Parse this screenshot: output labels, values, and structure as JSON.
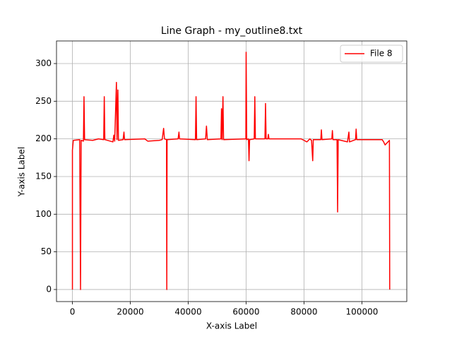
{
  "chart_data": {
    "type": "line",
    "title": "Line Graph - my_outline8.txt",
    "x_label": "X-axis Label",
    "y_label": "Y-axis Label",
    "x": [
      0,
      0,
      300,
      2500,
      2800,
      3000,
      3800,
      4000,
      4200,
      7000,
      9000,
      10800,
      11000,
      11200,
      14000,
      14300,
      14600,
      15200,
      15400,
      15700,
      15900,
      17500,
      17800,
      18000,
      25000,
      26000,
      30000,
      31000,
      31500,
      31800,
      32500,
      32600,
      32700,
      36500,
      36800,
      37000,
      42500,
      42700,
      42900,
      46000,
      46300,
      46600,
      51300,
      51500,
      51700,
      52000,
      52200,
      59900,
      60000,
      60200,
      60800,
      61000,
      61200,
      62800,
      63000,
      63200,
      66500,
      66700,
      66900,
      67500,
      67700,
      67900,
      79000,
      80000,
      81000,
      82000,
      82600,
      83000,
      83200,
      85800,
      86000,
      86200,
      89600,
      89800,
      90000,
      91400,
      91600,
      91800,
      95000,
      95500,
      95700,
      97800,
      98000,
      98200,
      107000,
      107500,
      108000,
      109500,
      109600
    ],
    "series": [
      {
        "name": "File 8",
        "color": "#ff0000",
        "values": [
          0,
          185,
          198,
          199,
          0,
          198,
          197,
          256,
          199,
          198,
          200,
          199,
          256,
          199,
          196,
          205,
          197,
          275,
          199,
          265,
          198,
          199,
          209,
          199,
          200,
          197,
          198,
          199,
          214,
          200,
          199,
          0,
          199,
          200,
          209,
          200,
          199,
          256,
          199,
          200,
          217,
          199,
          200,
          240,
          199,
          256,
          199,
          200,
          315,
          199,
          200,
          171,
          199,
          200,
          256,
          200,
          200,
          247,
          200,
          200,
          206,
          200,
          200,
          198,
          196,
          200,
          198,
          171,
          199,
          199,
          212,
          199,
          200,
          211,
          199,
          199,
          103,
          199,
          196,
          209,
          196,
          199,
          213,
          199,
          199,
          196,
          192,
          198,
          0
        ]
      }
    ],
    "xlim": [
      -5500,
      115500
    ],
    "ylim": [
      -16,
      330
    ],
    "xticks": [
      0,
      20000,
      40000,
      60000,
      80000,
      100000
    ],
    "yticks": [
      0,
      50,
      100,
      150,
      200,
      250,
      300
    ],
    "grid": true,
    "legend": "upper right"
  }
}
